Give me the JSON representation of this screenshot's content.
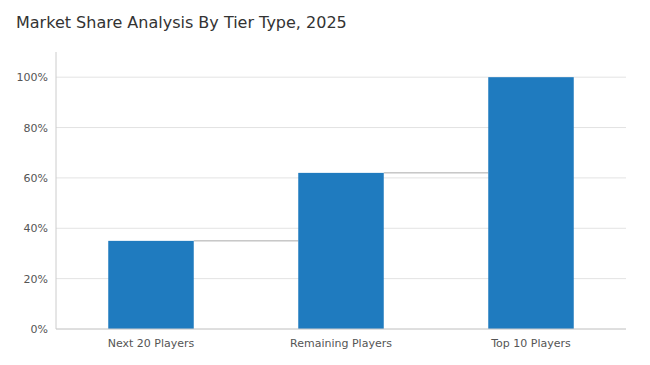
{
  "chart_data": {
    "type": "bar",
    "title": "Market Share Analysis By Tier Type, 2025",
    "categories": [
      "Next 20 Players",
      "Remaining Players",
      "Top 10 Players"
    ],
    "values": [
      35,
      62,
      100
    ],
    "color": "#1f7bbf",
    "ylim": [
      0,
      110
    ],
    "yticks": [
      {
        "value": 0,
        "label": "0%"
      },
      {
        "value": 20,
        "label": "20%"
      },
      {
        "value": 40,
        "label": "40%"
      },
      {
        "value": 60,
        "label": "60%"
      },
      {
        "value": 80,
        "label": "80%"
      },
      {
        "value": 100,
        "label": "100%"
      }
    ],
    "grid": true
  }
}
